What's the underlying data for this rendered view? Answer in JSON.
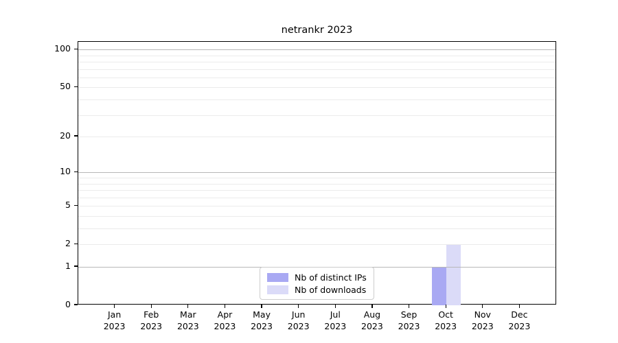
{
  "chart_data": {
    "type": "bar",
    "title": "netrankr 2023",
    "categories": [
      "Jan",
      "Feb",
      "Mar",
      "Apr",
      "May",
      "Jun",
      "Jul",
      "Aug",
      "Sep",
      "Oct",
      "Nov",
      "Dec"
    ],
    "category_year": "2023",
    "series": [
      {
        "name": "Nb of distinct IPs",
        "color": "#a9a9f3",
        "values": [
          0,
          0,
          0,
          0,
          0,
          0,
          0,
          0,
          0,
          1,
          0,
          0
        ]
      },
      {
        "name": "Nb of downloads",
        "color": "#dbdbf8",
        "values": [
          0,
          0,
          0,
          0,
          0,
          0,
          0,
          0,
          0,
          2,
          0,
          0
        ]
      }
    ],
    "xlabel": "",
    "ylabel": "",
    "yscale": "log1p",
    "ylim": [
      0,
      115
    ],
    "yticks": [
      0,
      1,
      2,
      5,
      10,
      20,
      50,
      100
    ],
    "major_gridlines": [
      1,
      10,
      100
    ],
    "minor_gridlines": [
      2,
      3,
      4,
      5,
      6,
      7,
      8,
      9,
      20,
      30,
      40,
      50,
      60,
      70,
      80,
      90
    ],
    "grid_colors": {
      "major": "#b7b7b7",
      "minor": "#ebebeb"
    },
    "axis_color": "#000000",
    "legend_position": "lower center"
  }
}
